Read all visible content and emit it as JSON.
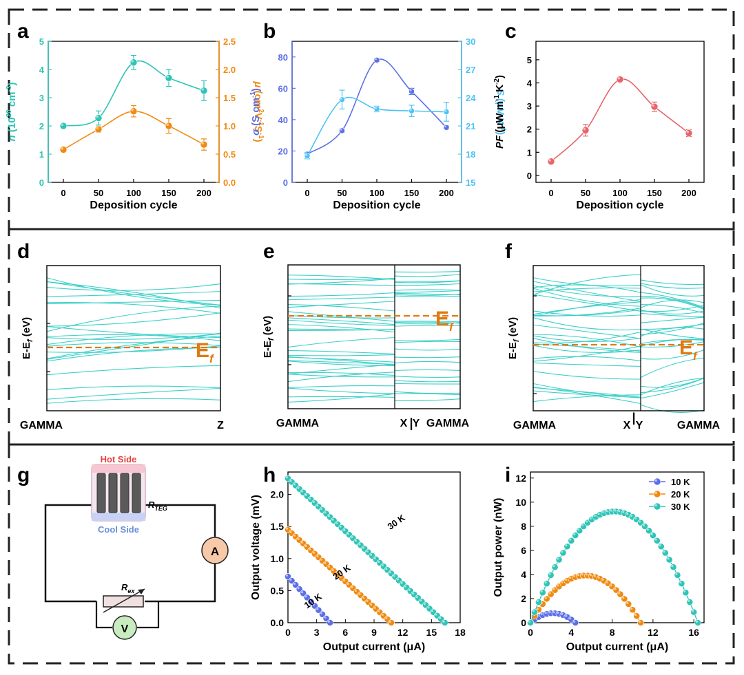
{
  "panel_labels": [
    "a",
    "b",
    "c",
    "d",
    "e",
    "f",
    "g",
    "h",
    "i"
  ],
  "colors": {
    "teal": "#2ec4b6",
    "orange": "#f08a10",
    "blue": "#5b6ee8",
    "lightblue": "#4dc3f5",
    "red": "#e8636a",
    "band": "#3cd0c8",
    "fermi": "#e07a12",
    "hot": "#e84040",
    "cool": "#6a8fd8",
    "ammeter": "#f7c9a8",
    "voltmeter": "#c8ecc0"
  },
  "chart_data": [
    {
      "id": "a",
      "type": "line",
      "xlabel": "Deposition cycle",
      "x": [
        0,
        50,
        100,
        150,
        200
      ],
      "xticks": [
        "0",
        "50",
        "100",
        "150",
        "200"
      ],
      "left_axis": {
        "label_sym": "n",
        "label_rest": " (10",
        "label_sup": "20",
        "label_end": " cm",
        "label_sup2": "-3",
        "label_close": ")",
        "ylim": [
          0,
          5
        ],
        "ticks": [
          "0",
          "1",
          "2",
          "3",
          "4",
          "5"
        ],
        "color": "#2ec4b6"
      },
      "right_axis": {
        "label_sym": "μ",
        "label_rest": " (cm",
        "label_sup": "2",
        "label_mid": "V",
        "label_sup2": "-1",
        "label_mid2": "S",
        "label_sup3": "-1",
        "label_close": ")",
        "ylim": [
          0,
          2.5
        ],
        "ticks": [
          "0.0",
          "0.5",
          "1.0",
          "1.5",
          "2.0",
          "2.5"
        ],
        "color": "#f08a10"
      },
      "series": [
        {
          "name": "n",
          "axis": "left",
          "values": [
            2.0,
            2.28,
            4.25,
            3.7,
            3.25
          ],
          "errors": [
            0.05,
            0.25,
            0.25,
            0.3,
            0.35
          ]
        },
        {
          "name": "mu",
          "axis": "right",
          "values": [
            0.58,
            0.94,
            1.26,
            1.0,
            0.67
          ],
          "errors": [
            0.03,
            0.05,
            0.1,
            0.13,
            0.1
          ]
        }
      ]
    },
    {
      "id": "b",
      "type": "line",
      "xlabel": "Deposition cycle",
      "x": [
        0,
        50,
        100,
        150,
        200
      ],
      "xticks": [
        "0",
        "50",
        "100",
        "150",
        "200"
      ],
      "left_axis": {
        "label_sym": "σ",
        "label_rest": " (S cm",
        "label_sup": "-1",
        "label_close": ")",
        "ylim": [
          0,
          90
        ],
        "ticks": [
          "0",
          "20",
          "40",
          "60",
          "80"
        ],
        "tickvals": [
          0,
          20,
          40,
          60,
          80
        ],
        "color": "#5b6ee8"
      },
      "right_axis": {
        "label_sym": "S",
        "label_rest": " (μV K",
        "label_sup": "-1",
        "label_close": ")",
        "ylim": [
          15,
          30
        ],
        "ticks": [
          "15",
          "18",
          "21",
          "24",
          "27",
          "30"
        ],
        "tickvals": [
          15,
          18,
          21,
          24,
          27,
          30
        ],
        "color": "#4dc3f5"
      },
      "series": [
        {
          "name": "sigma",
          "axis": "left",
          "values": [
            18,
            33,
            78,
            58,
            35
          ],
          "errors": [
            1,
            1,
            1,
            2,
            1
          ]
        },
        {
          "name": "S",
          "axis": "right",
          "values": [
            17.8,
            23.8,
            22.8,
            22.6,
            22.5
          ],
          "errors": [
            0.3,
            1.0,
            0.3,
            0.6,
            1.0
          ]
        }
      ]
    },
    {
      "id": "c",
      "type": "line",
      "xlabel": "Deposition cycle",
      "x": [
        0,
        50,
        100,
        150,
        200
      ],
      "xticks": [
        "0",
        "50",
        "100",
        "150",
        "200"
      ],
      "left_axis": {
        "label_sym": "PF",
        "label_rest": " (μW m",
        "label_sup": "-1",
        "label_end": " K",
        "label_sup2": "-2",
        "label_close": ")",
        "ylim": [
          -0.3,
          5.8
        ],
        "ticks": [
          "0",
          "1",
          "2",
          "3",
          "4",
          "5"
        ],
        "tickvals": [
          0,
          1,
          2,
          3,
          4,
          5
        ],
        "color": "#000000"
      },
      "series": [
        {
          "name": "PF",
          "values": [
            0.6,
            1.95,
            4.15,
            2.97,
            1.83
          ],
          "errors": [
            0.05,
            0.25,
            0.07,
            0.2,
            0.15
          ]
        }
      ]
    },
    {
      "id": "d",
      "type": "line",
      "ylabel": "E-E",
      "ylabel_sub": "f",
      "ylabel_end": " (eV)",
      "xticks": [
        "GAMMA",
        "Z"
      ],
      "fermi_label": "E",
      "fermi_sub": "f"
    },
    {
      "id": "e",
      "type": "line",
      "ylabel": "E-E",
      "ylabel_sub": "f",
      "ylabel_end": " (eV)",
      "xticks": [
        "GAMMA",
        "X",
        "Y",
        "GAMMA"
      ],
      "fermi_label": "E",
      "fermi_sub": "f"
    },
    {
      "id": "f",
      "type": "line",
      "ylabel": "E-E",
      "ylabel_sub": "f",
      "ylabel_end": " (eV)",
      "xticks": [
        "GAMMA",
        "X",
        "Y",
        "GAMMA"
      ],
      "fermi_label": "E",
      "fermi_sub": "f"
    },
    {
      "id": "h",
      "type": "line",
      "xlabel": "Output current (μA)",
      "ylabel": "Output voltage (mV)",
      "xlim": [
        0,
        18
      ],
      "ylim": [
        0,
        2.35
      ],
      "xticks": [
        "0",
        "3",
        "6",
        "9",
        "12",
        "15",
        "18"
      ],
      "yticks": [
        "0.0",
        "0.5",
        "1.0",
        "1.5",
        "2.0"
      ],
      "series": [
        {
          "name": "10 K",
          "isc": 4.4,
          "voc": 0.72
        },
        {
          "name": "20 K",
          "isc": 10.8,
          "voc": 1.45
        },
        {
          "name": "30 K",
          "isc": 16.4,
          "voc": 2.25
        }
      ]
    },
    {
      "id": "i",
      "type": "line",
      "xlabel": "Output current (μA)",
      "ylabel": "Output power (nW)",
      "xlim": [
        0,
        17
      ],
      "ylim": [
        0,
        12.5
      ],
      "xticks": [
        "0",
        "4",
        "8",
        "12",
        "16"
      ],
      "yticks": [
        "0",
        "2",
        "4",
        "6",
        "8",
        "10",
        "12"
      ],
      "series": [
        {
          "name": "10 K",
          "isc": 4.4,
          "voc": 0.72
        },
        {
          "name": "20 K",
          "isc": 10.8,
          "voc": 1.45
        },
        {
          "name": "30 K",
          "isc": 16.4,
          "voc": 2.25
        }
      ]
    }
  ],
  "circuit": {
    "hot_side": "Hot Side",
    "cool_side": "Cool Side",
    "r_teg": "R",
    "r_teg_sub": "TEG",
    "r_ex": "R",
    "r_ex_sub": "ex",
    "ammeter": "A",
    "voltmeter": "V"
  }
}
